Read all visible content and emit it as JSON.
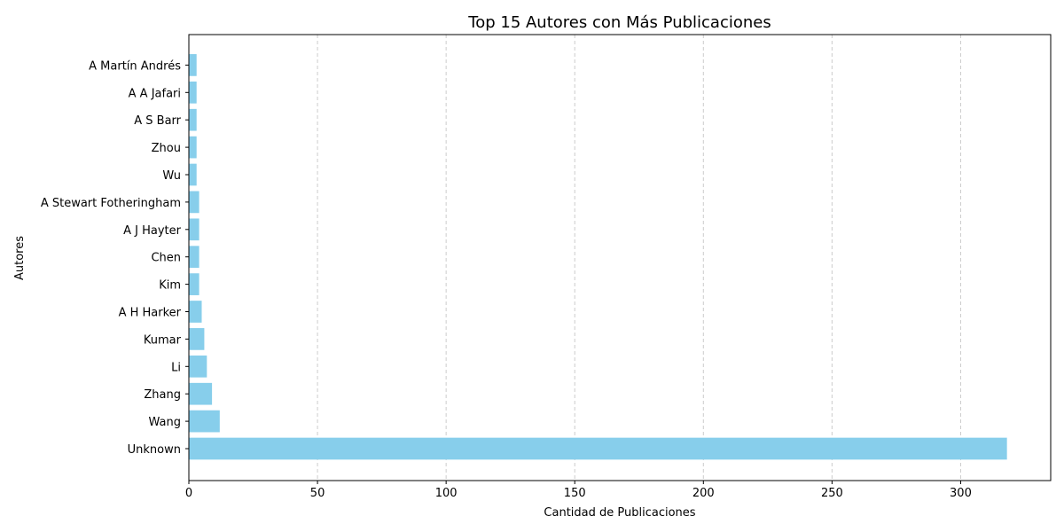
{
  "chart_data": {
    "type": "bar",
    "orientation": "horizontal",
    "title": "Top 15 Autores con Más Publicaciones",
    "xlabel": "Cantidad de Publicaciones",
    "ylabel": "Autores",
    "xlim": [
      0,
      335
    ],
    "xticks": [
      0,
      50,
      100,
      150,
      200,
      250,
      300
    ],
    "grid": "x-dashed",
    "bar_color": "#87ceeb",
    "categories": [
      "Unknown",
      "Wang",
      "Zhang",
      "Li",
      "Kumar",
      "A H Harker",
      "Kim",
      "Chen",
      "A J Hayter",
      "A Stewart Fotheringham",
      "Wu",
      "Zhou",
      "A S Barr",
      "A A Jafari",
      "A Martín Andrés"
    ],
    "values": [
      318,
      12,
      9,
      7,
      6,
      5,
      4,
      4,
      4,
      4,
      3,
      3,
      3,
      3,
      3
    ]
  }
}
